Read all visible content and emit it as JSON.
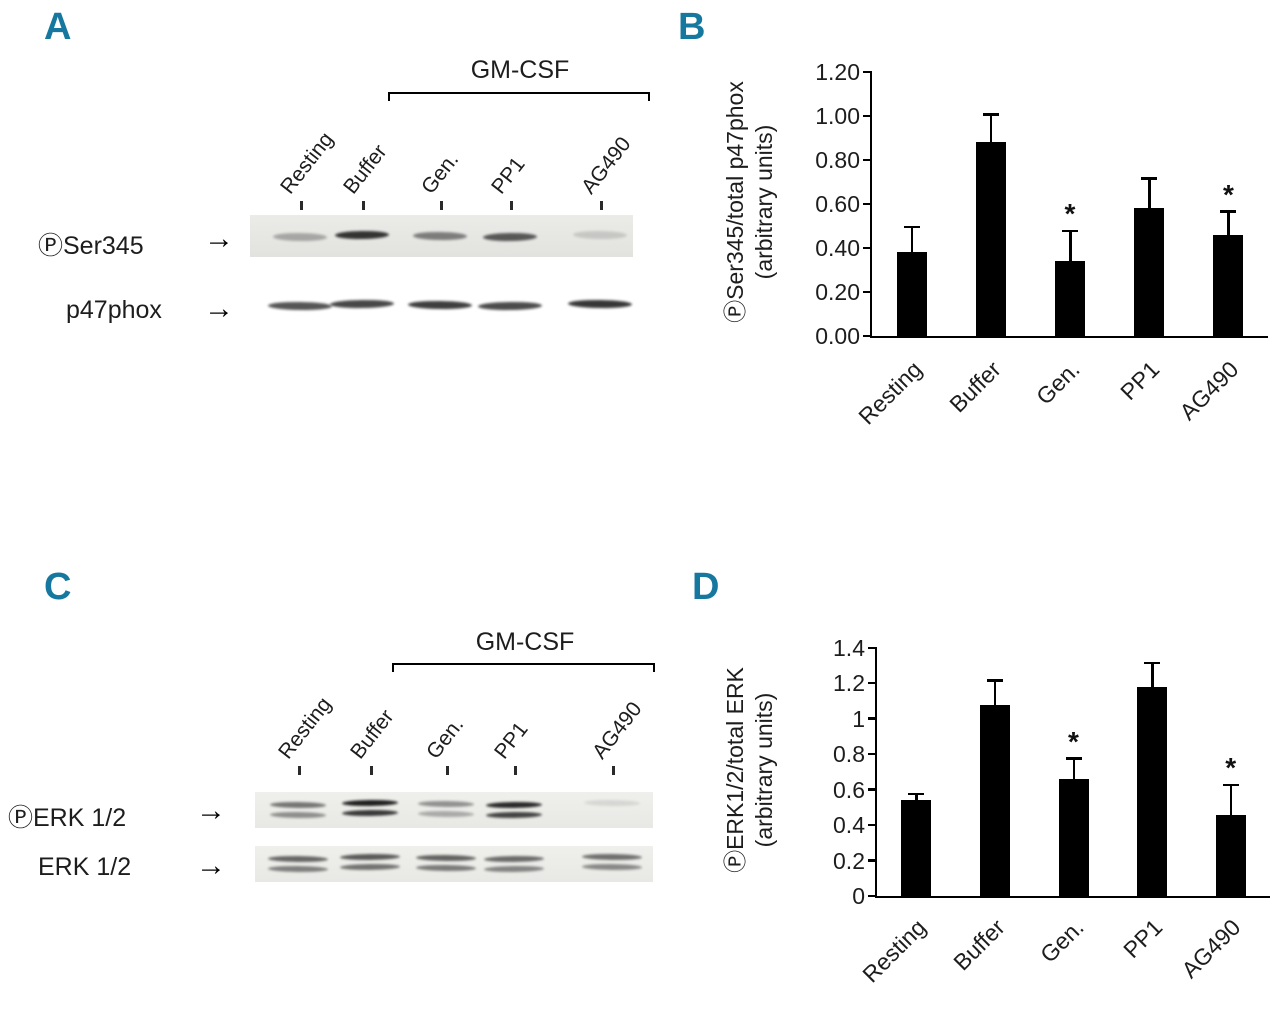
{
  "accent_color": "#16789f",
  "icons": {
    "arrow_right": "→"
  },
  "panels": {
    "a": {
      "letter": "A"
    },
    "b": {
      "letter": "B"
    },
    "c": {
      "letter": "C"
    },
    "d": {
      "letter": "D"
    }
  },
  "blots": [
    {
      "panel": "A",
      "group_label": "GM-CSF",
      "lanes": [
        "Resting",
        "Buffer",
        "Gen.",
        "PP1",
        "AG490"
      ],
      "rows": [
        {
          "label": "ⓅSer345",
          "band_intensities": [
            0.3,
            0.85,
            0.5,
            0.68,
            0.15
          ],
          "doublet": false
        },
        {
          "label": "p47phox",
          "band_intensities": [
            0.72,
            0.78,
            0.82,
            0.76,
            0.85
          ],
          "doublet": false
        }
      ]
    },
    {
      "panel": "C",
      "group_label": "GM-CSF",
      "lanes": [
        "Resting",
        "Buffer",
        "Gen.",
        "PP1",
        "AG490"
      ],
      "rows": [
        {
          "label": "ⓅERK 1/2",
          "band_intensities": [
            0.55,
            0.95,
            0.42,
            0.9,
            0.1
          ],
          "doublet": true
        },
        {
          "label": "ERK 1/2",
          "band_intensities": [
            0.62,
            0.68,
            0.64,
            0.6,
            0.58
          ],
          "doublet": true
        }
      ]
    }
  ],
  "chart_data": [
    {
      "type": "bar",
      "panel": "B",
      "categories": [
        "Resting",
        "Buffer",
        "Gen.",
        "PP1",
        "AG490"
      ],
      "values": [
        0.38,
        0.88,
        0.34,
        0.58,
        0.46
      ],
      "errors_up": [
        0.12,
        0.13,
        0.14,
        0.14,
        0.11
      ],
      "significance": [
        "",
        "",
        "*",
        "",
        "*"
      ],
      "ylabel": [
        "ⓅSer345/total p47phox",
        "(arbitrary units)"
      ],
      "ylim": [
        0,
        1.2
      ],
      "yticks": [
        "1.20",
        "1.00",
        "0.80",
        "0.60",
        "0.40",
        "0.20",
        "0.00"
      ],
      "bar_color": "#000000",
      "grid": false,
      "legend": "none"
    },
    {
      "type": "bar",
      "panel": "D",
      "categories": [
        "Resting",
        "Buffer",
        "Gen.",
        "PP1",
        "AG490"
      ],
      "values": [
        0.54,
        1.08,
        0.66,
        1.18,
        0.46
      ],
      "errors_up": [
        0.04,
        0.14,
        0.12,
        0.14,
        0.17
      ],
      "significance": [
        "",
        "",
        "*",
        "",
        "*"
      ],
      "ylabel": [
        "ⓅERK1/2/total ERK",
        "(arbitrary units)"
      ],
      "ylim": [
        0,
        1.4
      ],
      "yticks": [
        "1.4",
        "1.2",
        "1",
        "0.8",
        "0.6",
        "0.4",
        "0.2",
        "0"
      ],
      "bar_color": "#000000",
      "grid": false,
      "legend": "none"
    }
  ]
}
